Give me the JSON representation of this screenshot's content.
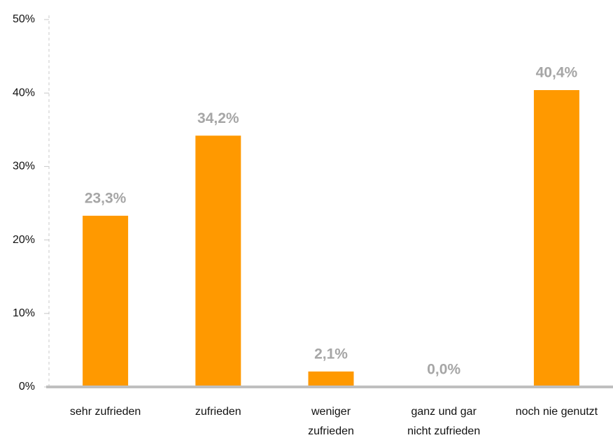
{
  "chart_data": {
    "type": "bar",
    "categories": [
      [
        "sehr zufrieden"
      ],
      [
        "zufrieden"
      ],
      [
        "weniger",
        "zufrieden"
      ],
      [
        "ganz und gar",
        "nicht zufrieden"
      ],
      [
        "noch nie genutzt"
      ]
    ],
    "values": [
      23.3,
      34.2,
      2.1,
      0.0,
      40.4
    ],
    "value_labels": [
      "23,3%",
      "34,2%",
      "2,1%",
      "0,0%",
      "40,4%"
    ],
    "color": "#ff9900",
    "ylim": [
      0,
      50
    ],
    "yticks": [
      {
        "value": 0,
        "label": "0%"
      },
      {
        "value": 10,
        "label": "10%"
      },
      {
        "value": 20,
        "label": "20%"
      },
      {
        "value": 30,
        "label": "30%"
      },
      {
        "value": 40,
        "label": "40%"
      },
      {
        "value": 50,
        "label": "50%"
      }
    ],
    "grid": false
  }
}
